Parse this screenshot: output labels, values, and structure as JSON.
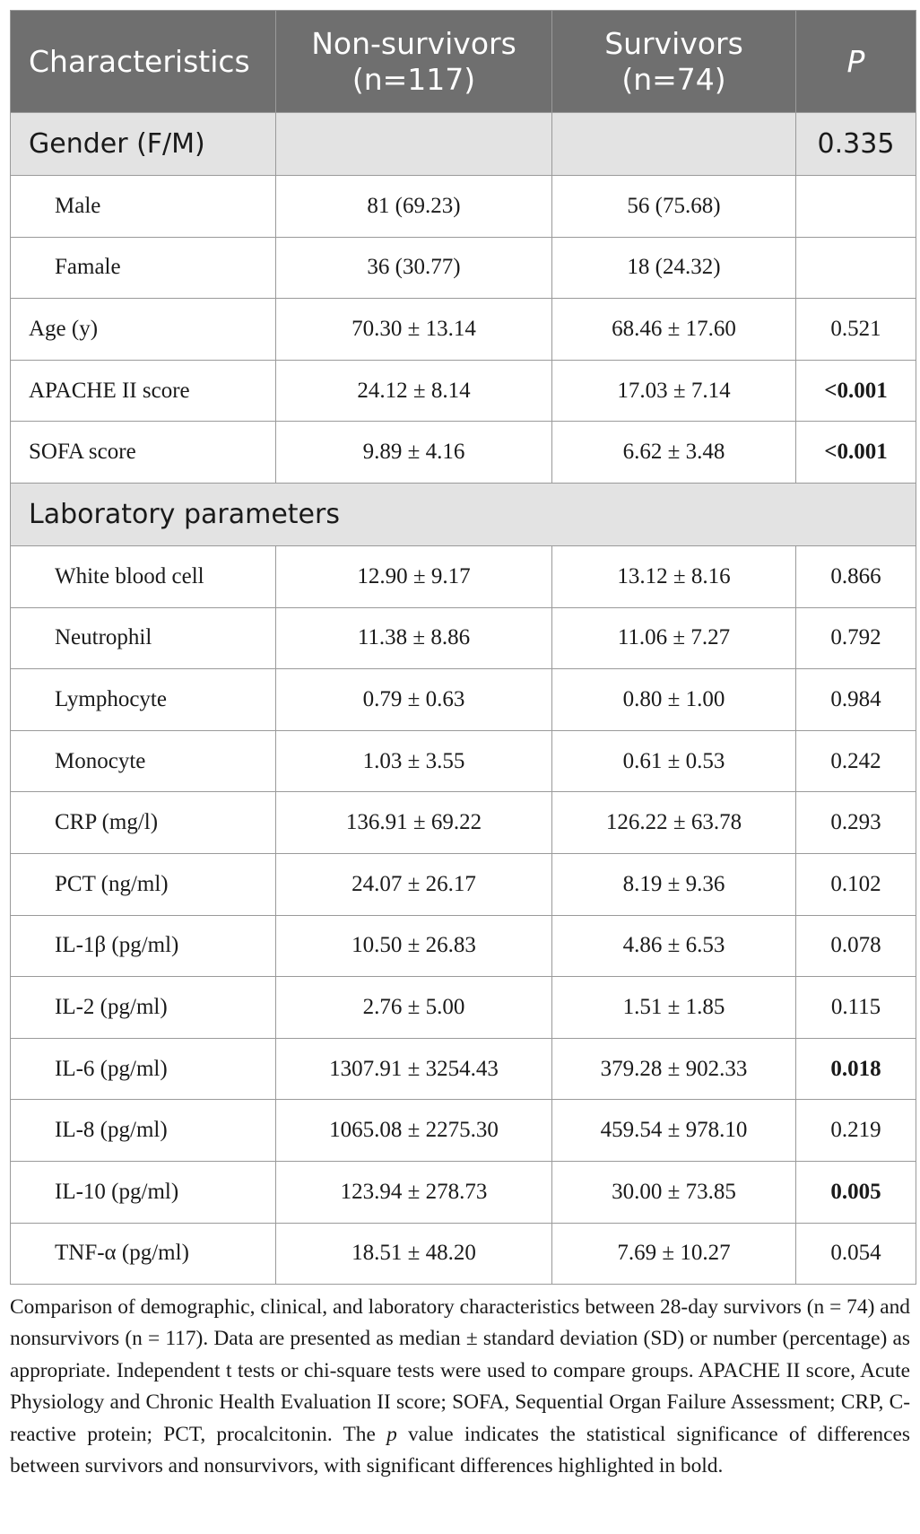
{
  "table": {
    "headers": {
      "characteristics": "Characteristics",
      "non_survivors_line1": "Non-survivors",
      "non_survivors_line2": "(n=117)",
      "survivors_line1": "Survivors",
      "survivors_line2": "(n=74)",
      "p": "P"
    },
    "gender_section": {
      "label": "Gender (F/M)",
      "p": "0.335"
    },
    "gender_rows": [
      {
        "label": "Male",
        "non_survivors": "81 (69.23)",
        "survivors": "56 (75.68)",
        "p": ""
      },
      {
        "label": "Famale",
        "non_survivors": "36 (30.77)",
        "survivors": "18 (24.32)",
        "p": ""
      }
    ],
    "clinical_rows": [
      {
        "label": "Age (y)",
        "non_survivors": "70.30 ± 13.14",
        "survivors": "68.46 ± 17.60",
        "p": "0.521"
      },
      {
        "label": "APACHE II score",
        "non_survivors": "24.12 ± 8.14",
        "survivors": "17.03 ± 7.14",
        "p": "<0.001"
      },
      {
        "label": "SOFA score",
        "non_survivors": "9.89 ± 4.16",
        "survivors": "6.62 ± 3.48",
        "p": "<0.001"
      }
    ],
    "lab_section": {
      "label": "Laboratory parameters"
    },
    "lab_rows": [
      {
        "label": "White blood cell",
        "non_survivors": "12.90 ± 9.17",
        "survivors": "13.12 ± 8.16",
        "p": "0.866"
      },
      {
        "label": "Neutrophil",
        "non_survivors": "11.38 ± 8.86",
        "survivors": "11.06 ± 7.27",
        "p": "0.792"
      },
      {
        "label": "Lymphocyte",
        "non_survivors": "0.79 ± 0.63",
        "survivors": "0.80 ± 1.00",
        "p": "0.984"
      },
      {
        "label": "Monocyte",
        "non_survivors": "1.03 ± 3.55",
        "survivors": "0.61 ± 0.53",
        "p": "0.242"
      },
      {
        "label": "CRP (mg/l)",
        "non_survivors": "136.91 ± 69.22",
        "survivors": "126.22 ± 63.78",
        "p": "0.293"
      },
      {
        "label": "PCT (ng/ml)",
        "non_survivors": "24.07 ± 26.17",
        "survivors": "8.19 ± 9.36",
        "p": "0.102"
      },
      {
        "label": "IL-1β (pg/ml)",
        "non_survivors": "10.50 ± 26.83",
        "survivors": "4.86 ± 6.53",
        "p": "0.078"
      },
      {
        "label": "IL-2 (pg/ml)",
        "non_survivors": "2.76 ± 5.00",
        "survivors": "1.51 ± 1.85",
        "p": "0.115"
      },
      {
        "label": "IL-6 (pg/ml)",
        "non_survivors": "1307.91 ± 3254.43",
        "survivors": "379.28 ± 902.33",
        "p": "0.018"
      },
      {
        "label": "IL-8 (pg/ml)",
        "non_survivors": "1065.08 ± 2275.30",
        "survivors": "459.54 ± 978.10",
        "p": "0.219"
      },
      {
        "label": "IL-10 (pg/ml)",
        "non_survivors": "123.94 ± 278.73",
        "survivors": "30.00 ± 73.85",
        "p": "0.005"
      },
      {
        "label": "TNF-α (pg/ml)",
        "non_survivors": "18.51 ± 48.20",
        "survivors": "7.69 ± 10.27",
        "p": "0.054"
      }
    ]
  },
  "caption": {
    "part1": "Comparison of demographic, clinical, and laboratory characteristics between 28-day survivors (n = 74) and nonsurvivors (n = 117). Data are presented as median ± standard deviation (SD) or number (percentage) as appropriate. Independent t tests or chi-square tests were used to compare groups. APACHE II score, Acute Physiology and Chronic Health Evaluation II score; SOFA, Sequential Organ Failure Assessment; CRP, C-reactive protein; PCT, procalcitonin. The ",
    "p_italic": "p",
    "part2": " value indicates the statistical significance of differences between survivors and nonsurvivors, with significant differences highlighted in bold."
  }
}
